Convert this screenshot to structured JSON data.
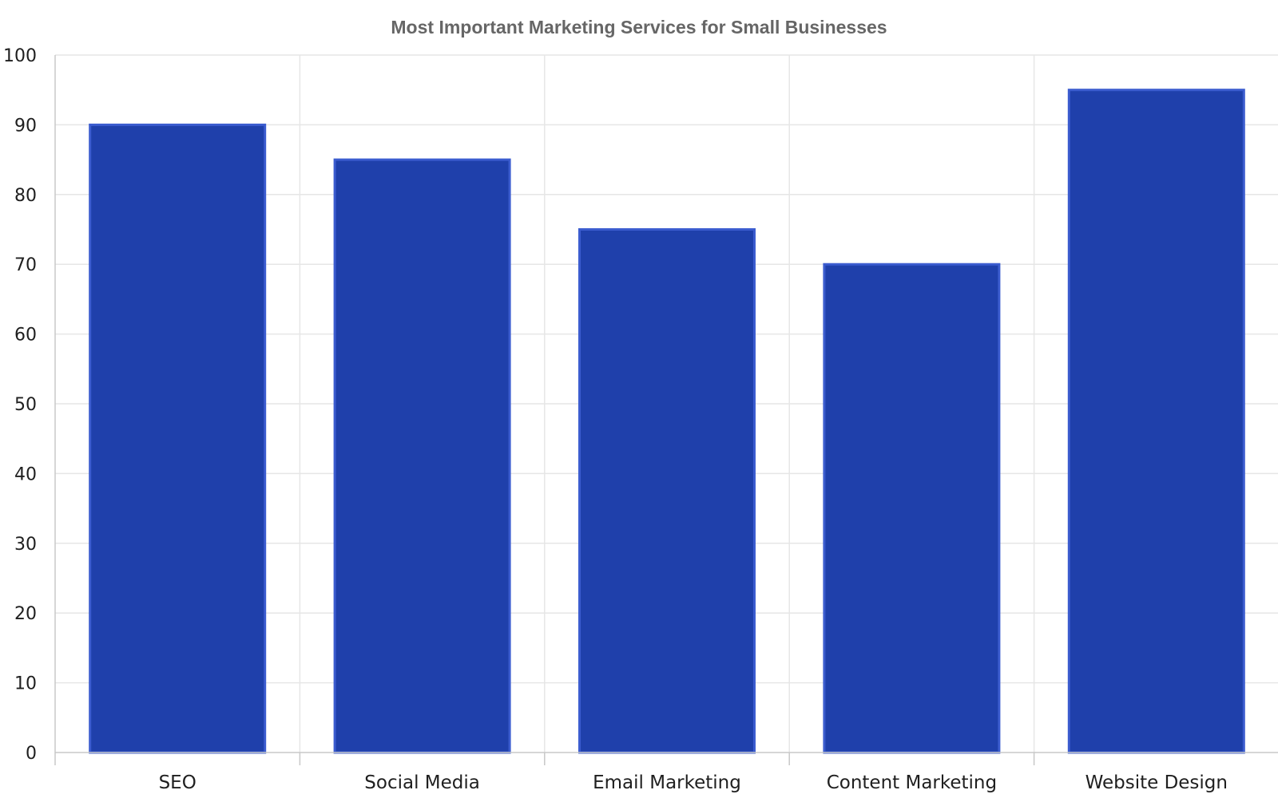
{
  "chart_data": {
    "type": "bar",
    "title": "Most Important Marketing Services for Small Businesses",
    "xlabel": "",
    "ylabel": "",
    "categories": [
      "SEO",
      "Social Media",
      "Email Marketing",
      "Content Marketing",
      "Website Design"
    ],
    "values": [
      90,
      85,
      75,
      70,
      95
    ],
    "ylim": [
      0,
      100
    ],
    "yticks": [
      0,
      10,
      20,
      30,
      40,
      50,
      60,
      70,
      80,
      90,
      100
    ],
    "grid": true,
    "legend": "none",
    "colors": {
      "bar_fill": "#1f40ab",
      "bar_edge": "#3b5ccf",
      "grid": "#e6e6e6",
      "axis": "#c8c8c8",
      "title": "#666666",
      "text": "#1f1f1f"
    }
  }
}
